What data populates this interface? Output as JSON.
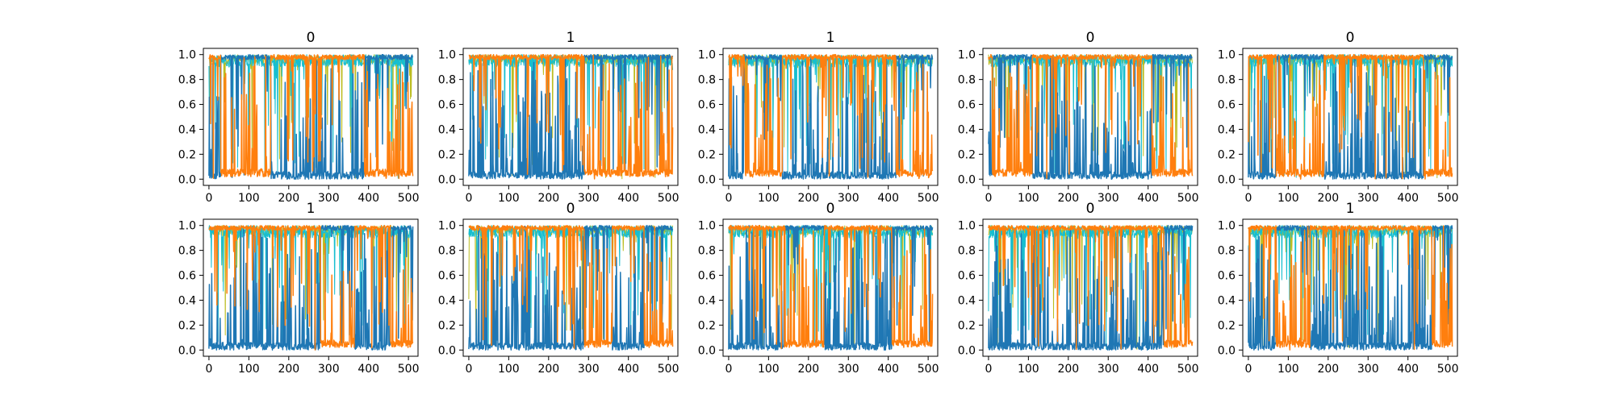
{
  "chart_data": {
    "type": "line",
    "layout": {
      "rows": 2,
      "cols": 5
    },
    "xlim": [
      -14,
      524
    ],
    "ylim": [
      -0.05,
      1.05
    ],
    "x_ticks": [
      0,
      100,
      200,
      300,
      400,
      500
    ],
    "y_ticks": [
      0.0,
      0.2,
      0.4,
      0.6,
      0.8,
      1.0
    ],
    "x_tick_labels": [
      "0",
      "100",
      "200",
      "300",
      "400",
      "500"
    ],
    "y_tick_labels": [
      "0.0",
      "0.2",
      "0.4",
      "0.6",
      "0.8",
      "1.0"
    ],
    "points_per_series": 512,
    "grid": false,
    "legend": "none",
    "colors": {
      "blue": "#1f77b4",
      "orange": "#ff7f0e",
      "cyan": "#17becf",
      "olive": "#bcbd22",
      "green": "#2ca02c",
      "purple": "#9467bd"
    },
    "subplots": [
      {
        "title": "0",
        "orange_segments": [
          [
            0,
            30
          ],
          [
            155,
            390
          ]
        ]
      },
      {
        "title": "1",
        "orange_segments": [
          [
            0,
            290
          ]
        ]
      },
      {
        "title": "1",
        "orange_segments": [
          [
            0,
            40
          ],
          [
            135,
            420
          ]
        ]
      },
      {
        "title": "0",
        "orange_segments": [
          [
            0,
            10
          ],
          [
            110,
            410
          ]
        ]
      },
      {
        "title": "0",
        "orange_segments": [
          [
            0,
            70
          ],
          [
            190,
            440
          ]
        ]
      },
      {
        "title": "1",
        "orange_segments": [
          [
            0,
            280
          ],
          [
            365,
            455
          ]
        ]
      },
      {
        "title": "0",
        "orange_segments": [
          [
            0,
            290
          ],
          [
            360,
            440
          ]
        ]
      },
      {
        "title": "0",
        "orange_segments": [
          [
            0,
            140
          ],
          [
            240,
            410
          ]
        ]
      },
      {
        "title": "0",
        "orange_segments": [
          [
            0,
            440
          ]
        ]
      },
      {
        "title": "1",
        "orange_segments": [
          [
            0,
            70
          ],
          [
            155,
            460
          ]
        ]
      }
    ]
  }
}
